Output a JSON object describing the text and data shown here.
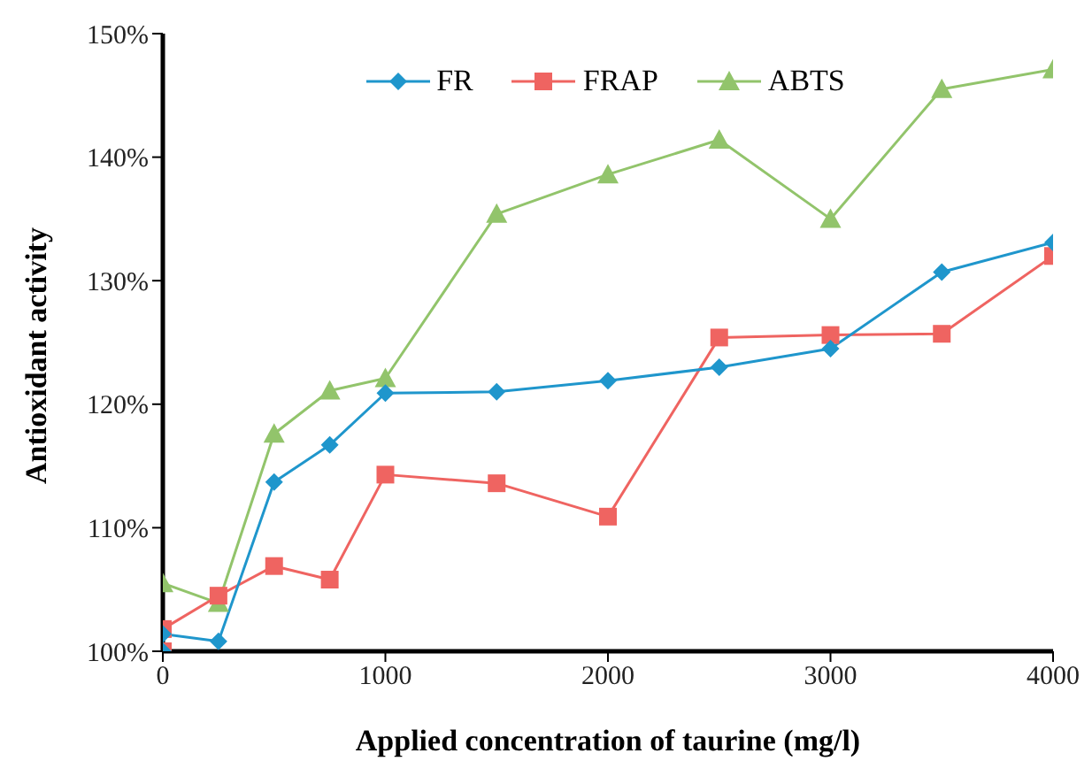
{
  "chart_data": {
    "type": "line",
    "xlabel": "Applied concentration of taurine (mg/l)",
    "ylabel": "Antioxidant activity",
    "series": [
      {
        "name": "FR",
        "color": "#1f96cc",
        "marker": "diamond",
        "x": [
          0,
          0,
          250,
          500,
          750,
          1000,
          1500,
          2000,
          2500,
          3000,
          3500,
          4000
        ],
        "values": [
          100,
          101.4,
          100.8,
          113.7,
          116.7,
          120.9,
          121.0,
          121.9,
          123.0,
          124.5,
          130.7,
          133.1
        ]
      },
      {
        "name": "FRAP",
        "color": "#ef6461",
        "marker": "square",
        "x": [
          0,
          0,
          250,
          500,
          750,
          1000,
          1500,
          2000,
          2500,
          3000,
          3500,
          4000
        ],
        "values": [
          100,
          101.8,
          104.5,
          106.9,
          105.8,
          114.3,
          113.6,
          110.9,
          125.4,
          125.6,
          125.7,
          132.0
        ]
      },
      {
        "name": "ABTS",
        "color": "#92c46b",
        "marker": "triangle",
        "x": [
          0,
          0,
          250,
          500,
          750,
          1000,
          1500,
          2000,
          2500,
          3000,
          3500,
          4000
        ],
        "values": [
          100,
          105.5,
          103.9,
          117.6,
          121.1,
          122.1,
          135.4,
          138.6,
          141.4,
          135.0,
          145.5,
          147.1
        ]
      }
    ],
    "xlim": [
      0,
      4000
    ],
    "xticks": [
      0,
      1000,
      2000,
      3000,
      4000
    ],
    "ylim": [
      100,
      150
    ],
    "yticks": [
      {
        "value": 100,
        "label": "100%"
      },
      {
        "value": 110,
        "label": "110%"
      },
      {
        "value": 120,
        "label": "120%"
      },
      {
        "value": 130,
        "label": "130%"
      },
      {
        "value": 140,
        "label": "140%"
      },
      {
        "value": 150,
        "label": "150%"
      }
    ],
    "grid": false,
    "legend": "top",
    "line_style": "solid"
  }
}
